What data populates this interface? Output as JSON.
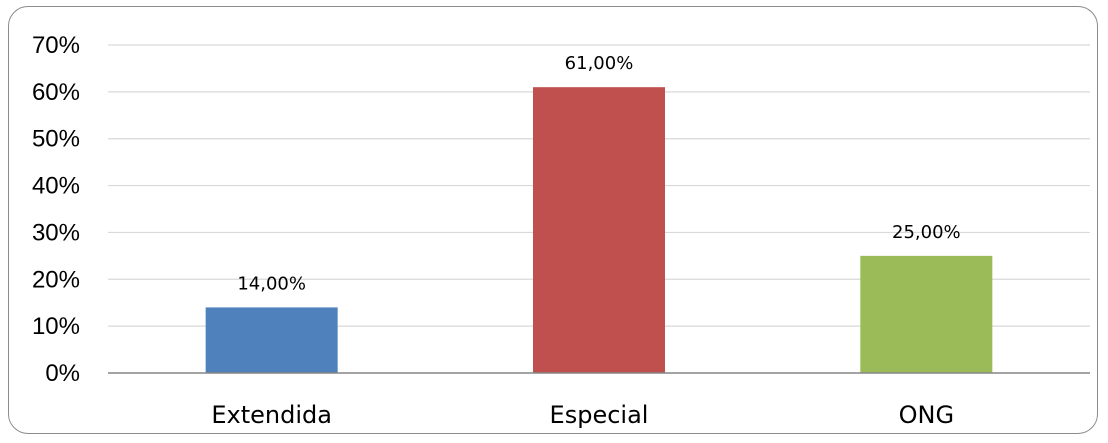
{
  "chart_data": {
    "type": "bar",
    "categories": [
      "Extendida",
      "Especial",
      "ONG"
    ],
    "values": [
      14,
      61,
      25
    ],
    "data_labels": [
      "14,00%",
      "61,00%",
      "25,00%"
    ],
    "colors": [
      "#4f81bd",
      "#c0504d",
      "#9bbb59"
    ],
    "ylim": [
      0,
      70
    ],
    "yticks": [
      0,
      10,
      20,
      30,
      40,
      50,
      60,
      70
    ],
    "ytick_labels": [
      "0%",
      "10%",
      "20%",
      "30%",
      "40%",
      "50%",
      "60%",
      "70%"
    ],
    "grid": true,
    "gridline_color": "#d9d9d9",
    "axis_color": "#868686",
    "legend": "none",
    "title": "",
    "xlabel": "",
    "ylabel": ""
  }
}
